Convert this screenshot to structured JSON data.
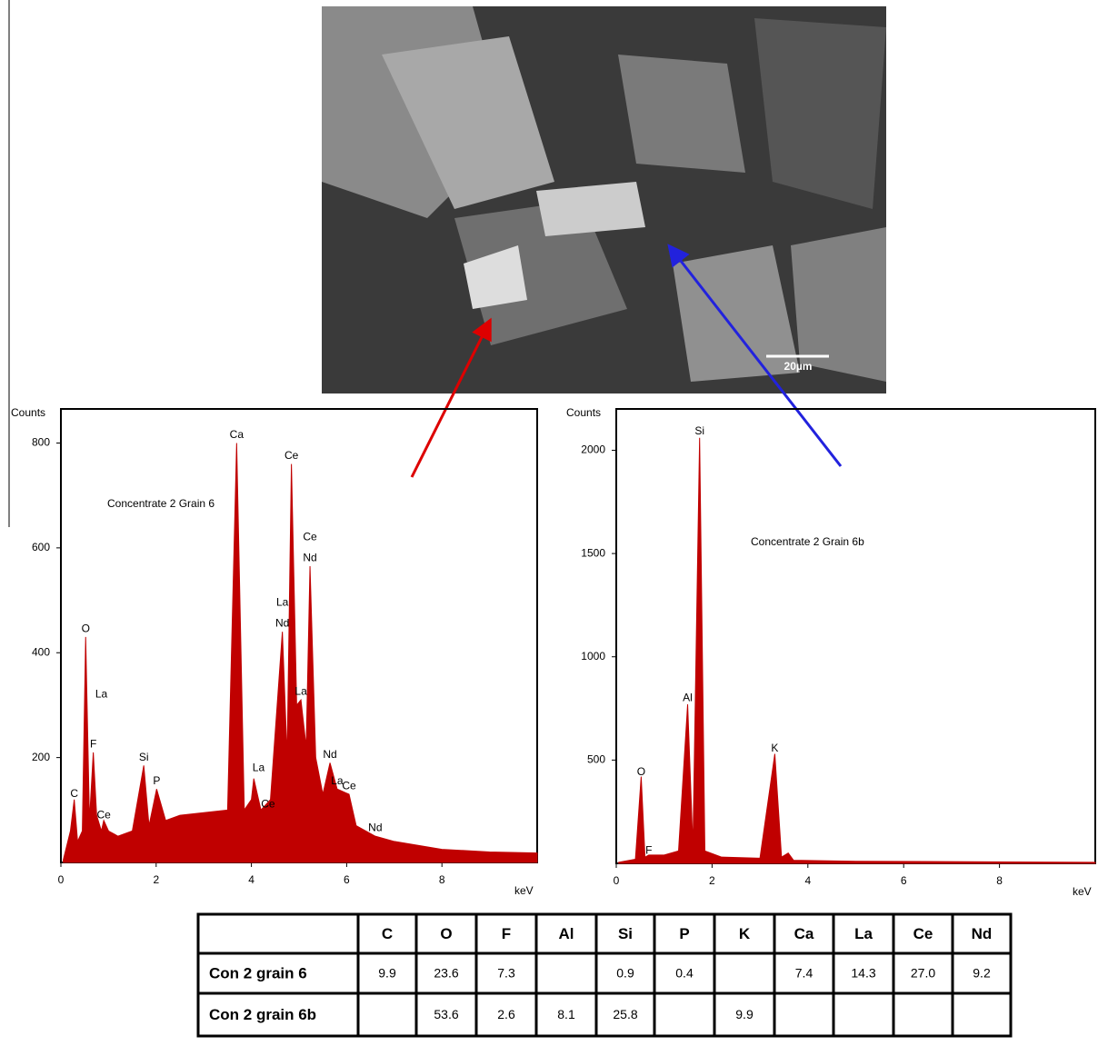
{
  "image": {
    "scale_bar": "20µm"
  },
  "chart_data": [
    {
      "type": "line",
      "title": "Concentrate 2 Grain 6",
      "y_label": "Counts",
      "x_label": "keV",
      "color": "#c00000",
      "xlim": [
        0,
        10
      ],
      "ylim": [
        0,
        865
      ],
      "xticks": [
        0,
        2,
        4,
        6,
        8
      ],
      "yticks": [
        200,
        400,
        600,
        800
      ],
      "x": [
        0.05,
        0.2,
        0.28,
        0.35,
        0.45,
        0.52,
        0.6,
        0.68,
        0.75,
        0.85,
        0.9,
        1.0,
        1.2,
        1.5,
        1.74,
        1.85,
        2.01,
        2.2,
        2.5,
        3.0,
        3.5,
        3.69,
        3.85,
        4.0,
        4.05,
        4.2,
        4.4,
        4.65,
        4.75,
        4.84,
        4.95,
        5.04,
        5.15,
        5.23,
        5.35,
        5.5,
        5.65,
        5.8,
        6.05,
        6.2,
        6.6,
        7.0,
        8.0,
        9.0,
        10.0
      ],
      "values": [
        5,
        60,
        120,
        40,
        60,
        430,
        80,
        210,
        90,
        60,
        80,
        60,
        50,
        60,
        185,
        70,
        140,
        80,
        90,
        95,
        100,
        800,
        100,
        120,
        160,
        100,
        120,
        440,
        200,
        760,
        300,
        310,
        220,
        565,
        200,
        130,
        190,
        140,
        130,
        70,
        50,
        40,
        25,
        20,
        18
      ],
      "annotations": [
        {
          "text": "C",
          "x": 0.28,
          "y": 130
        },
        {
          "text": "O",
          "x": 0.52,
          "y": 445
        },
        {
          "text": "La",
          "x": 0.85,
          "y": 320
        },
        {
          "text": "F",
          "x": 0.68,
          "y": 225
        },
        {
          "text": "Ce",
          "x": 0.9,
          "y": 90
        },
        {
          "text": "Si",
          "x": 1.74,
          "y": 200
        },
        {
          "text": "P",
          "x": 2.01,
          "y": 155
        },
        {
          "text": "Ca",
          "x": 3.69,
          "y": 815
        },
        {
          "text": "Ce",
          "x": 4.84,
          "y": 775
        },
        {
          "text": "Ce",
          "x": 5.23,
          "y": 620
        },
        {
          "text": "Nd",
          "x": 5.23,
          "y": 580
        },
        {
          "text": "La",
          "x": 4.65,
          "y": 495
        },
        {
          "text": "Nd",
          "x": 4.65,
          "y": 455
        },
        {
          "text": "La",
          "x": 5.04,
          "y": 325
        },
        {
          "text": "La",
          "x": 4.15,
          "y": 180
        },
        {
          "text": "Ce",
          "x": 4.35,
          "y": 110
        },
        {
          "text": "Nd",
          "x": 5.65,
          "y": 205
        },
        {
          "text": "La",
          "x": 5.8,
          "y": 155
        },
        {
          "text": "Ce",
          "x": 6.05,
          "y": 145
        },
        {
          "text": "Nd",
          "x": 6.6,
          "y": 65
        }
      ]
    },
    {
      "type": "line",
      "title": "Concentrate 2 Grain 6b",
      "y_label": "Counts",
      "x_label": "keV",
      "color": "#c00000",
      "xlim": [
        0,
        10
      ],
      "ylim": [
        0,
        2200
      ],
      "xticks": [
        0,
        2,
        4,
        6,
        8
      ],
      "yticks": [
        500,
        1000,
        1500,
        2000
      ],
      "x": [
        0.05,
        0.4,
        0.52,
        0.6,
        0.68,
        1.0,
        1.3,
        1.49,
        1.6,
        1.74,
        1.85,
        2.2,
        3.0,
        3.31,
        3.45,
        3.59,
        3.7,
        5.0,
        10.0
      ],
      "values": [
        5,
        20,
        420,
        30,
        40,
        40,
        60,
        770,
        80,
        2060,
        60,
        30,
        25,
        530,
        30,
        50,
        15,
        10,
        5
      ],
      "annotations": [
        {
          "text": "O",
          "x": 0.52,
          "y": 440
        },
        {
          "text": "F",
          "x": 0.68,
          "y": 60
        },
        {
          "text": "Al",
          "x": 1.49,
          "y": 800
        },
        {
          "text": "Si",
          "x": 1.74,
          "y": 2090
        },
        {
          "text": "K",
          "x": 3.31,
          "y": 555
        }
      ]
    }
  ],
  "table": {
    "header": [
      null,
      "C",
      "O",
      "F",
      "Al",
      "Si",
      "P",
      "K",
      "Ca",
      "La",
      "Ce",
      "Nd"
    ],
    "rows": [
      [
        "Con 2 grain 6",
        "9.9",
        "23.6",
        "7.3",
        null,
        "0.9",
        "0.4",
        null,
        "7.4",
        "14.3",
        "27.0",
        "9.2"
      ],
      [
        "Con 2 grain 6b",
        null,
        "53.6",
        "2.6",
        "8.1",
        "25.8",
        null,
        "9.9",
        null,
        null,
        null,
        null
      ]
    ]
  }
}
